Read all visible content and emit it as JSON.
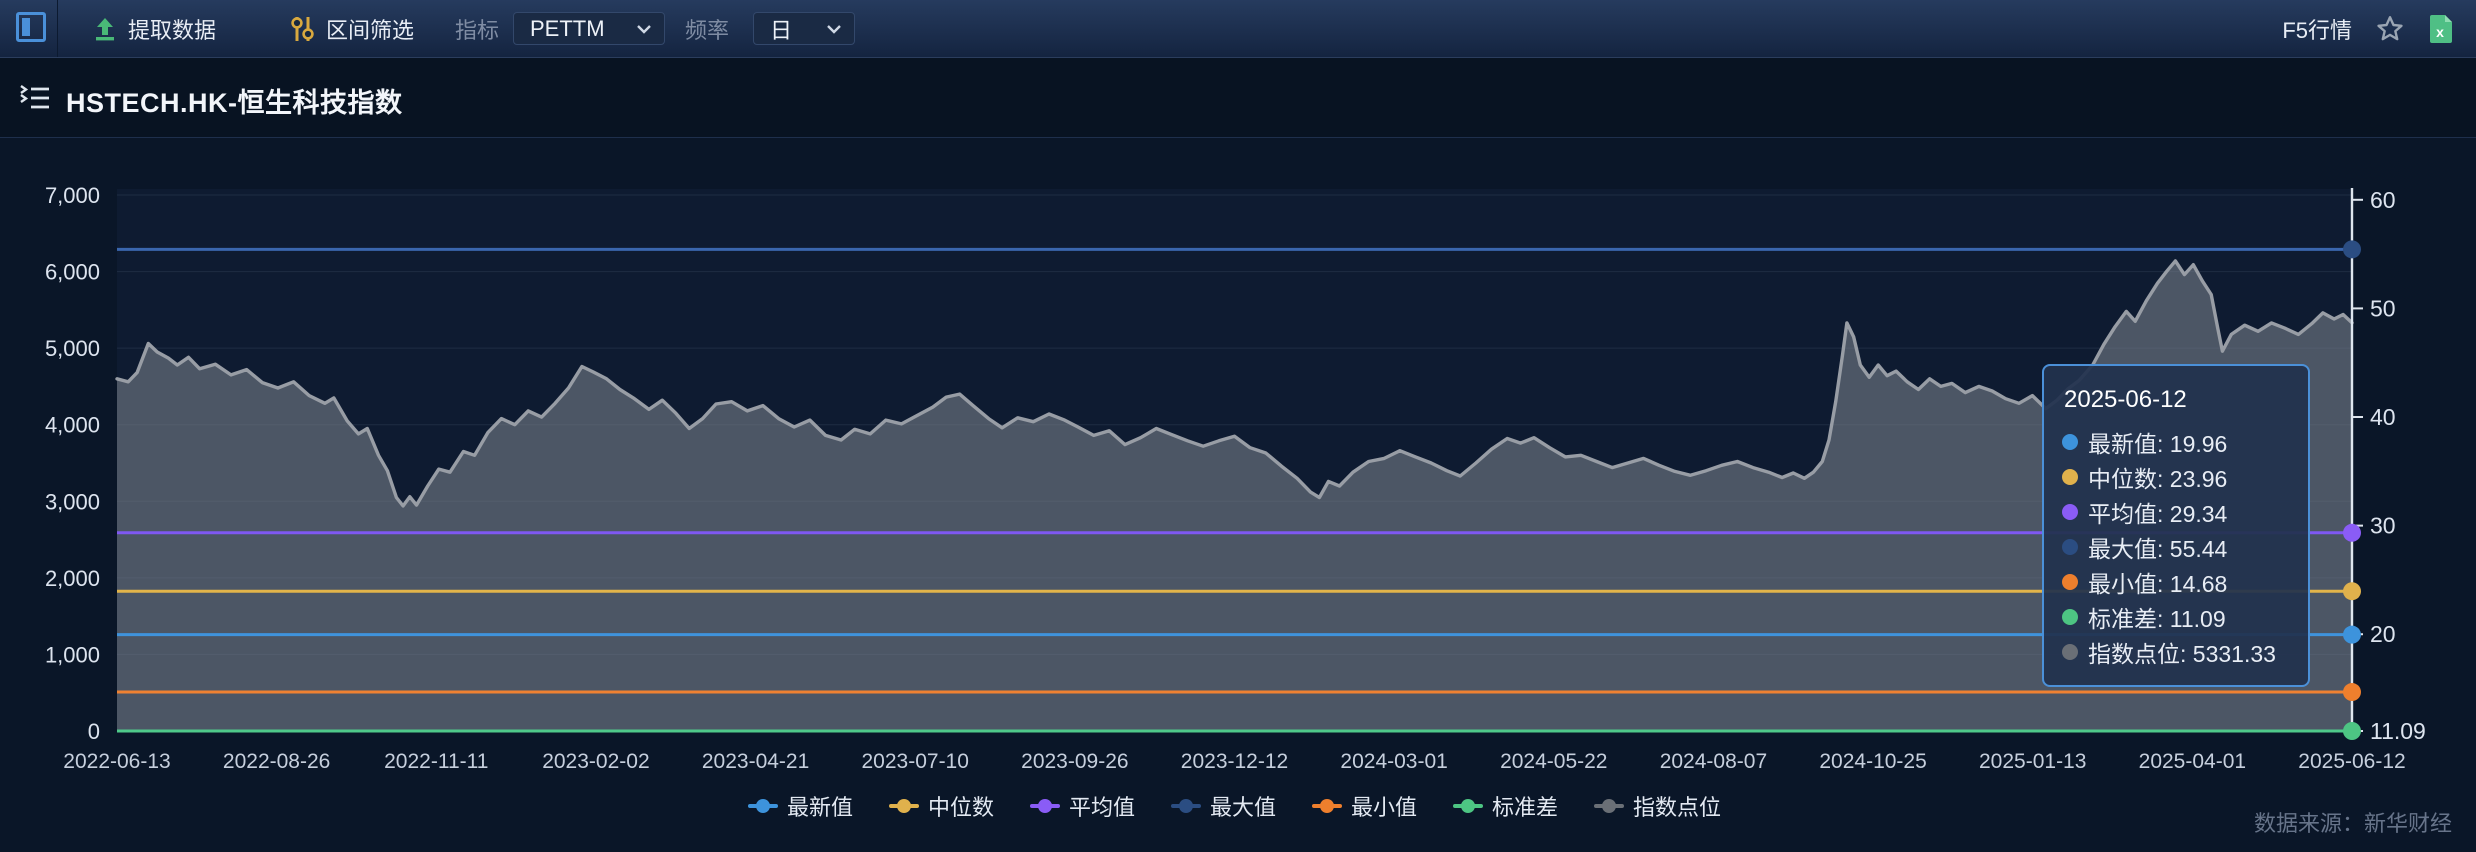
{
  "toolbar": {
    "extract_label": "提取数据",
    "range_filter_label": "区间筛选",
    "indicator_label": "指标",
    "indicator_value": "PETTM",
    "frequency_label": "频率",
    "frequency_value": "日",
    "quote_label": "F5行情",
    "accent_blue": "#4a90d9",
    "icon_green": "#49b877",
    "icon_gold": "#d9a93f",
    "excel_green": "#4fbf85"
  },
  "header": {
    "title": "HSTECH.HK-恒生科技指数"
  },
  "footer": {
    "data_source": "数据来源：新华财经"
  },
  "tooltip": {
    "date": "2025-06-12",
    "rows": [
      {
        "label": "最新值",
        "value": "19.96",
        "color": "#3d93dc"
      },
      {
        "label": "中位数",
        "value": "23.96",
        "color": "#e0b14c"
      },
      {
        "label": "平均值",
        "value": "29.34",
        "color": "#8a5cf6"
      },
      {
        "label": "最大值",
        "value": "55.44",
        "color": "#2b4d82"
      },
      {
        "label": "最小值",
        "value": "14.68",
        "color": "#ee7f2d"
      },
      {
        "label": "标准差",
        "value": "11.09",
        "color": "#4dc583"
      },
      {
        "label": "指数点位",
        "value": "5331.33",
        "color": "#6a6f76"
      }
    ]
  },
  "legend": {
    "items": [
      {
        "label": "最新值",
        "color": "#3d93dc"
      },
      {
        "label": "中位数",
        "color": "#e0b14c"
      },
      {
        "label": "平均值",
        "color": "#8a5cf6"
      },
      {
        "label": "最大值",
        "color": "#2b4d82"
      },
      {
        "label": "最小值",
        "color": "#ee7f2d"
      },
      {
        "label": "标准差",
        "color": "#4dc583"
      },
      {
        "label": "指数点位",
        "color": "#6a6f76"
      }
    ]
  },
  "chart_data": {
    "type": "area",
    "title": "HSTECH.HK PETTM vs 指数点位 (2022-06-13 至 2025-06-12)",
    "x_tick_labels": [
      "2022-06-13",
      "2022-08-26",
      "2022-11-11",
      "2023-02-02",
      "2023-04-21",
      "2023-07-10",
      "2023-09-26",
      "2023-12-12",
      "2024-03-01",
      "2024-05-22",
      "2024-08-07",
      "2024-10-25",
      "2025-01-13",
      "2025-04-01",
      "2025-06-12"
    ],
    "left_axis": {
      "label": "指数点位",
      "min": 0,
      "max": 7000,
      "tick_step": 1000,
      "tick_labels": [
        "0",
        "1,000",
        "2,000",
        "3,000",
        "4,000",
        "5,000",
        "6,000",
        "7,000"
      ]
    },
    "right_axis": {
      "label": "PETTM",
      "min": 11.09,
      "max": 60,
      "ticks": [
        60,
        50,
        40,
        30,
        20
      ],
      "min_label": "11.09"
    },
    "grid": true,
    "legend_position": "bottom",
    "stat_lines": [
      {
        "name": "最大值",
        "value": 55.44,
        "line_color": "#3a66ad",
        "dot_color": "#2b4d82"
      },
      {
        "name": "平均值",
        "value": 29.34,
        "line_color": "#7f58f2",
        "dot_color": "#8a5cf6"
      },
      {
        "name": "中位数",
        "value": 23.96,
        "line_color": "#e2b44a",
        "dot_color": "#e0b14c"
      },
      {
        "name": "最新值",
        "value": 19.96,
        "line_color": "#3f93dc",
        "dot_color": "#3d93dc"
      },
      {
        "name": "最小值",
        "value": 14.68,
        "line_color": "#ef8132",
        "dot_color": "#ee7f2d"
      },
      {
        "name": "标准差",
        "value": 11.09,
        "line_color": "#4fc98a",
        "dot_color": "#4dc583"
      }
    ],
    "index_series": {
      "name": "指数点位",
      "axis": "left",
      "line_color": "#989da5",
      "fill_color": "rgba(127,134,144,0.55)",
      "last_value": 5331.33,
      "points": [
        [
          0.0,
          4600
        ],
        [
          0.005,
          4560
        ],
        [
          0.009,
          4680
        ],
        [
          0.014,
          5060
        ],
        [
          0.018,
          4950
        ],
        [
          0.023,
          4870
        ],
        [
          0.027,
          4780
        ],
        [
          0.032,
          4880
        ],
        [
          0.037,
          4730
        ],
        [
          0.044,
          4790
        ],
        [
          0.051,
          4650
        ],
        [
          0.058,
          4720
        ],
        [
          0.065,
          4550
        ],
        [
          0.072,
          4480
        ],
        [
          0.079,
          4560
        ],
        [
          0.086,
          4380
        ],
        [
          0.093,
          4280
        ],
        [
          0.097,
          4350
        ],
        [
          0.103,
          4050
        ],
        [
          0.108,
          3880
        ],
        [
          0.112,
          3950
        ],
        [
          0.117,
          3600
        ],
        [
          0.121,
          3400
        ],
        [
          0.125,
          3050
        ],
        [
          0.128,
          2940
        ],
        [
          0.131,
          3060
        ],
        [
          0.134,
          2950
        ],
        [
          0.139,
          3200
        ],
        [
          0.144,
          3420
        ],
        [
          0.149,
          3380
        ],
        [
          0.155,
          3650
        ],
        [
          0.16,
          3600
        ],
        [
          0.166,
          3900
        ],
        [
          0.172,
          4080
        ],
        [
          0.178,
          4000
        ],
        [
          0.184,
          4180
        ],
        [
          0.19,
          4100
        ],
        [
          0.196,
          4280
        ],
        [
          0.202,
          4480
        ],
        [
          0.208,
          4760
        ],
        [
          0.213,
          4690
        ],
        [
          0.219,
          4600
        ],
        [
          0.225,
          4460
        ],
        [
          0.231,
          4350
        ],
        [
          0.238,
          4200
        ],
        [
          0.244,
          4320
        ],
        [
          0.25,
          4150
        ],
        [
          0.256,
          3950
        ],
        [
          0.262,
          4080
        ],
        [
          0.268,
          4270
        ],
        [
          0.275,
          4300
        ],
        [
          0.282,
          4180
        ],
        [
          0.289,
          4250
        ],
        [
          0.296,
          4080
        ],
        [
          0.303,
          3970
        ],
        [
          0.31,
          4060
        ],
        [
          0.317,
          3860
        ],
        [
          0.324,
          3800
        ],
        [
          0.33,
          3940
        ],
        [
          0.337,
          3880
        ],
        [
          0.344,
          4060
        ],
        [
          0.351,
          4010
        ],
        [
          0.358,
          4120
        ],
        [
          0.365,
          4230
        ],
        [
          0.371,
          4360
        ],
        [
          0.377,
          4400
        ],
        [
          0.383,
          4250
        ],
        [
          0.39,
          4080
        ],
        [
          0.396,
          3960
        ],
        [
          0.403,
          4090
        ],
        [
          0.41,
          4040
        ],
        [
          0.417,
          4140
        ],
        [
          0.424,
          4060
        ],
        [
          0.43,
          3970
        ],
        [
          0.437,
          3860
        ],
        [
          0.444,
          3920
        ],
        [
          0.451,
          3740
        ],
        [
          0.458,
          3830
        ],
        [
          0.465,
          3950
        ],
        [
          0.472,
          3870
        ],
        [
          0.479,
          3790
        ],
        [
          0.486,
          3720
        ],
        [
          0.493,
          3790
        ],
        [
          0.5,
          3850
        ],
        [
          0.507,
          3700
        ],
        [
          0.514,
          3630
        ],
        [
          0.521,
          3460
        ],
        [
          0.528,
          3300
        ],
        [
          0.534,
          3120
        ],
        [
          0.538,
          3050
        ],
        [
          0.542,
          3260
        ],
        [
          0.547,
          3200
        ],
        [
          0.553,
          3380
        ],
        [
          0.56,
          3520
        ],
        [
          0.567,
          3560
        ],
        [
          0.574,
          3660
        ],
        [
          0.581,
          3580
        ],
        [
          0.588,
          3500
        ],
        [
          0.595,
          3400
        ],
        [
          0.601,
          3330
        ],
        [
          0.608,
          3500
        ],
        [
          0.615,
          3680
        ],
        [
          0.622,
          3820
        ],
        [
          0.628,
          3760
        ],
        [
          0.634,
          3830
        ],
        [
          0.641,
          3700
        ],
        [
          0.648,
          3580
        ],
        [
          0.655,
          3600
        ],
        [
          0.662,
          3520
        ],
        [
          0.669,
          3440
        ],
        [
          0.676,
          3500
        ],
        [
          0.683,
          3560
        ],
        [
          0.69,
          3470
        ],
        [
          0.697,
          3390
        ],
        [
          0.704,
          3340
        ],
        [
          0.711,
          3400
        ],
        [
          0.718,
          3470
        ],
        [
          0.725,
          3520
        ],
        [
          0.732,
          3440
        ],
        [
          0.739,
          3380
        ],
        [
          0.745,
          3310
        ],
        [
          0.75,
          3370
        ],
        [
          0.755,
          3300
        ],
        [
          0.759,
          3380
        ],
        [
          0.763,
          3520
        ],
        [
          0.766,
          3800
        ],
        [
          0.769,
          4300
        ],
        [
          0.772,
          4900
        ],
        [
          0.774,
          5330
        ],
        [
          0.777,
          5150
        ],
        [
          0.78,
          4780
        ],
        [
          0.784,
          4620
        ],
        [
          0.788,
          4780
        ],
        [
          0.792,
          4640
        ],
        [
          0.796,
          4700
        ],
        [
          0.801,
          4560
        ],
        [
          0.806,
          4460
        ],
        [
          0.811,
          4600
        ],
        [
          0.816,
          4500
        ],
        [
          0.821,
          4540
        ],
        [
          0.827,
          4420
        ],
        [
          0.833,
          4500
        ],
        [
          0.839,
          4440
        ],
        [
          0.845,
          4340
        ],
        [
          0.851,
          4280
        ],
        [
          0.857,
          4380
        ],
        [
          0.863,
          4210
        ],
        [
          0.868,
          4320
        ],
        [
          0.873,
          4470
        ],
        [
          0.878,
          4580
        ],
        [
          0.884,
          4780
        ],
        [
          0.889,
          5050
        ],
        [
          0.894,
          5280
        ],
        [
          0.899,
          5480
        ],
        [
          0.903,
          5350
        ],
        [
          0.908,
          5620
        ],
        [
          0.913,
          5850
        ],
        [
          0.917,
          6000
        ],
        [
          0.921,
          6140
        ],
        [
          0.925,
          5960
        ],
        [
          0.929,
          6090
        ],
        [
          0.933,
          5880
        ],
        [
          0.937,
          5700
        ],
        [
          0.94,
          5250
        ],
        [
          0.942,
          4960
        ],
        [
          0.946,
          5180
        ],
        [
          0.952,
          5300
        ],
        [
          0.958,
          5220
        ],
        [
          0.964,
          5330
        ],
        [
          0.97,
          5260
        ],
        [
          0.976,
          5180
        ],
        [
          0.982,
          5320
        ],
        [
          0.987,
          5460
        ],
        [
          0.992,
          5380
        ],
        [
          0.996,
          5440
        ],
        [
          1.0,
          5331.33
        ]
      ]
    },
    "colors": {
      "plot_bg": "#0e1b31",
      "grid_line": "rgba(176,196,222,0.10)",
      "axis_line": "#dfe6ee",
      "axis_text": "#dde4ef",
      "x_text": "#c6cfdd"
    }
  }
}
